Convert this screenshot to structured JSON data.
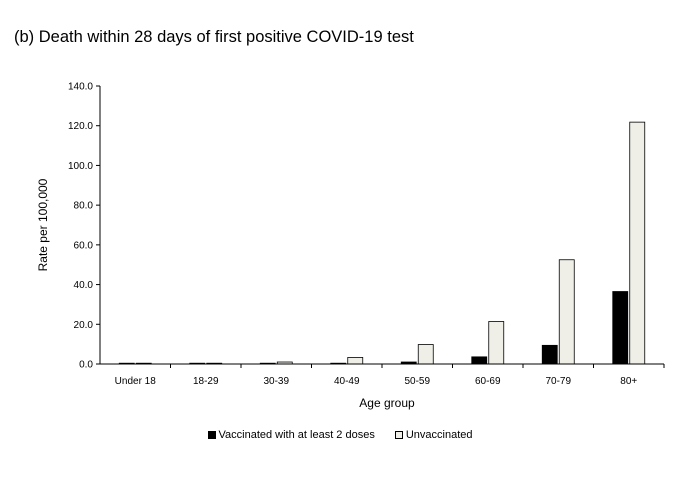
{
  "chart_data": {
    "type": "bar",
    "title": "(b) Death within 28 days of first positive COVID-19 test",
    "xlabel": "Age group",
    "ylabel": "Rate per 100,000",
    "ylim": [
      0,
      140
    ],
    "yticks": [
      "0.0",
      "20.0",
      "40.0",
      "60.0",
      "80.0",
      "100.0",
      "120.0",
      "140.0"
    ],
    "grid": false,
    "legend_position": "bottom",
    "categories": [
      "Under 18",
      "18-29",
      "30-39",
      "40-49",
      "50-59",
      "60-69",
      "70-79",
      "80+"
    ],
    "series": [
      {
        "name": "Vaccinated with at least 2 doses",
        "color": "#000000",
        "values": [
          0.0,
          0.1,
          0.1,
          0.4,
          1.0,
          3.6,
          9.4,
          36.5
        ]
      },
      {
        "name": "Unvaccinated",
        "color": "#efefe8",
        "values": [
          0.0,
          0.4,
          1.0,
          3.3,
          9.8,
          21.4,
          52.5,
          121.8
        ]
      }
    ]
  }
}
